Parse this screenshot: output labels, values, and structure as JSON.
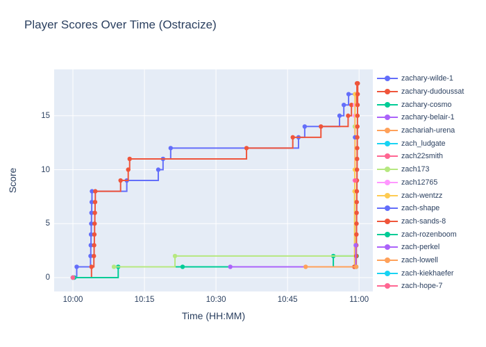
{
  "title": "Player Scores Over Time (Ostracize)",
  "colors": {
    "paper_bg": "#FFFFFF",
    "plot_bg": "#E5ECF6",
    "grid": "#FFFFFF",
    "text": "#2A3F5F"
  },
  "chart_data": {
    "type": "line",
    "title": "Player Scores Over Time (Ostracize)",
    "xlabel": "Time (HH:MM)",
    "ylabel": "Score",
    "line_shape": "hv",
    "grid": true,
    "legend_position": "right",
    "x_ticks": [
      "10:00",
      "10:15",
      "10:30",
      "10:45",
      "11:00"
    ],
    "x_tick_minutes": [
      0,
      15,
      30,
      45,
      60
    ],
    "y_ticks": [
      0,
      5,
      10,
      15
    ],
    "x_range_minutes": [
      -3.9,
      62.9
    ],
    "y_range": [
      -1.3,
      19.3
    ],
    "series": [
      {
        "name": "zachary-wilde-1",
        "color": "#636EFA",
        "points": [
          [
            0,
            0
          ],
          [
            0.8,
            1
          ],
          [
            3.7,
            2
          ],
          [
            3.75,
            3
          ],
          [
            3.8,
            4
          ],
          [
            3.85,
            5
          ],
          [
            3.9,
            6
          ],
          [
            3.95,
            7
          ],
          [
            4.0,
            8
          ],
          [
            11.3,
            9
          ],
          [
            17.9,
            10
          ],
          [
            18.9,
            11
          ],
          [
            20.5,
            12
          ],
          [
            47.3,
            13
          ],
          [
            48.6,
            14
          ],
          [
            55.9,
            15
          ],
          [
            56.8,
            16
          ],
          [
            57.8,
            17
          ],
          [
            59.2,
            17
          ]
        ]
      },
      {
        "name": "zachary-dudoussat",
        "color": "#EF553B",
        "points": [
          [
            0,
            0
          ],
          [
            3.9,
            1
          ],
          [
            4.4,
            2
          ],
          [
            4.45,
            3
          ],
          [
            4.5,
            4
          ],
          [
            4.55,
            5
          ],
          [
            4.6,
            6
          ],
          [
            4.65,
            7
          ],
          [
            4.7,
            8
          ],
          [
            10,
            9
          ],
          [
            11.6,
            10
          ],
          [
            11.9,
            11
          ],
          [
            36.4,
            12
          ],
          [
            46.1,
            13
          ],
          [
            52,
            14
          ],
          [
            57.7,
            15
          ],
          [
            58.4,
            16
          ],
          [
            59.5,
            17
          ],
          [
            59.55,
            18
          ]
        ]
      },
      {
        "name": "zachary-cosmo",
        "color": "#00CC96",
        "points": [
          [
            0.3,
            0
          ],
          [
            9.5,
            1
          ],
          [
            54.6,
            2
          ],
          [
            59.5,
            2
          ]
        ]
      },
      {
        "name": "zachary-belair-1",
        "color": "#AB63FA",
        "points": [
          [
            0,
            0
          ]
        ]
      },
      {
        "name": "zachariah-urena",
        "color": "#FFA15A",
        "points": [
          [
            0,
            0
          ]
        ]
      },
      {
        "name": "zach_ludgate",
        "color": "#19D3F3",
        "points": [
          [
            0,
            0
          ]
        ]
      },
      {
        "name": "zach22smith",
        "color": "#FF6692",
        "points": [
          [
            0,
            0
          ]
        ]
      },
      {
        "name": "zach173",
        "color": "#B6E880",
        "points": [
          [
            8.6,
            1
          ],
          [
            21.4,
            2
          ],
          [
            59.1,
            14
          ]
        ]
      },
      {
        "name": "zach12765",
        "color": "#FF97FF",
        "points": [
          [
            59.05,
            9
          ],
          [
            59.1,
            15
          ],
          [
            59.15,
            16
          ]
        ]
      },
      {
        "name": "zach-wentzz",
        "color": "#FECB52",
        "points": [
          [
            59.0,
            1
          ],
          [
            59.05,
            8
          ],
          [
            59.1,
            10
          ],
          [
            59.15,
            17
          ]
        ]
      },
      {
        "name": "zach-shape",
        "color": "#636EFA",
        "points": [
          [
            59.15,
            13
          ]
        ]
      },
      {
        "name": "zach-sands-8",
        "color": "#EF553B",
        "points": [
          [
            59.0,
            1
          ],
          [
            59.4,
            2
          ],
          [
            59.42,
            3
          ],
          [
            59.44,
            4
          ],
          [
            59.46,
            5
          ],
          [
            59.48,
            6
          ],
          [
            59.5,
            7
          ],
          [
            59.52,
            8
          ],
          [
            59.54,
            9
          ],
          [
            59.56,
            10
          ],
          [
            59.58,
            11
          ],
          [
            59.6,
            12
          ],
          [
            59.62,
            13
          ],
          [
            59.64,
            14
          ],
          [
            59.66,
            15
          ],
          [
            59.68,
            16
          ],
          [
            59.7,
            17
          ],
          [
            59.72,
            18
          ]
        ]
      },
      {
        "name": "zach-rozenboom",
        "color": "#00CC96",
        "points": [
          [
            23,
            1
          ],
          [
            59.4,
            1
          ]
        ]
      },
      {
        "name": "zach-perkel",
        "color": "#AB63FA",
        "points": [
          [
            33,
            1
          ],
          [
            59.3,
            3
          ]
        ]
      },
      {
        "name": "zach-lowell",
        "color": "#FFA15A",
        "points": [
          [
            48.8,
            1
          ],
          [
            59.4,
            1
          ]
        ]
      },
      {
        "name": "zach-kiekhaefer",
        "color": "#19D3F3",
        "points": []
      },
      {
        "name": "zach-hope-7",
        "color": "#FF6692",
        "points": [
          [
            59.2,
            9
          ]
        ]
      }
    ]
  }
}
